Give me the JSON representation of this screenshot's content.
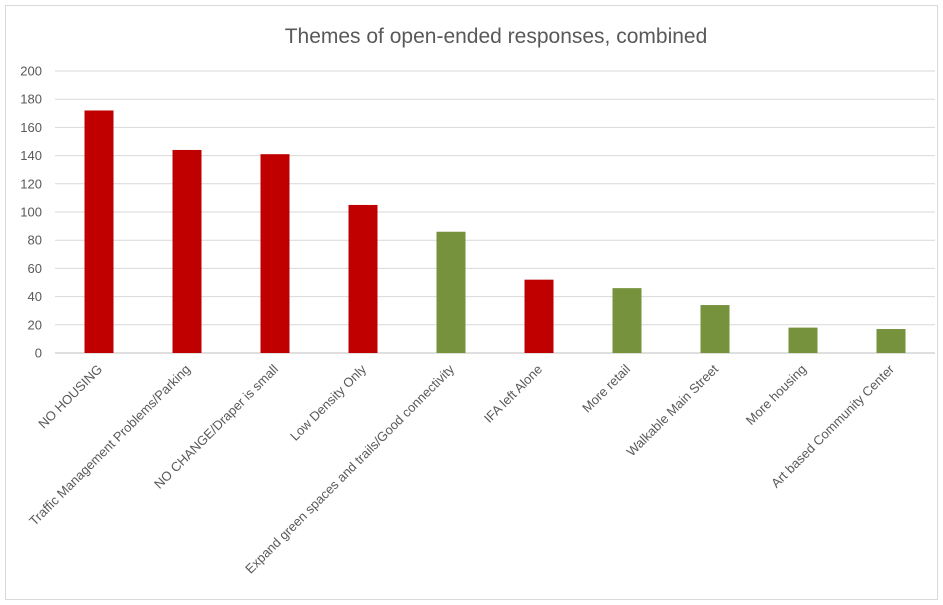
{
  "chart_data": {
    "type": "bar",
    "title": "Themes of open-ended responses, combined",
    "xlabel": "",
    "ylabel": "",
    "ylim": [
      0,
      200
    ],
    "yticks": [
      0,
      20,
      40,
      60,
      80,
      100,
      120,
      140,
      160,
      180,
      200
    ],
    "grid": true,
    "legend": "none",
    "categories": [
      "NO HOUSING",
      "Traffic Management Problems/Parking",
      "NO CHANGE/Draper is small",
      "Low Density Only",
      "Expand green spaces and trails/Good connectivity",
      "IFA left Alone",
      "More retail",
      "Walkable Main Street",
      "More housing",
      "Art based Community Center"
    ],
    "values": [
      172,
      144,
      141,
      105,
      86,
      52,
      46,
      34,
      18,
      17
    ],
    "bar_colors": [
      "#c00000",
      "#c00000",
      "#c00000",
      "#c00000",
      "#76923c",
      "#c00000",
      "#76923c",
      "#76923c",
      "#76923c",
      "#76923c"
    ]
  }
}
